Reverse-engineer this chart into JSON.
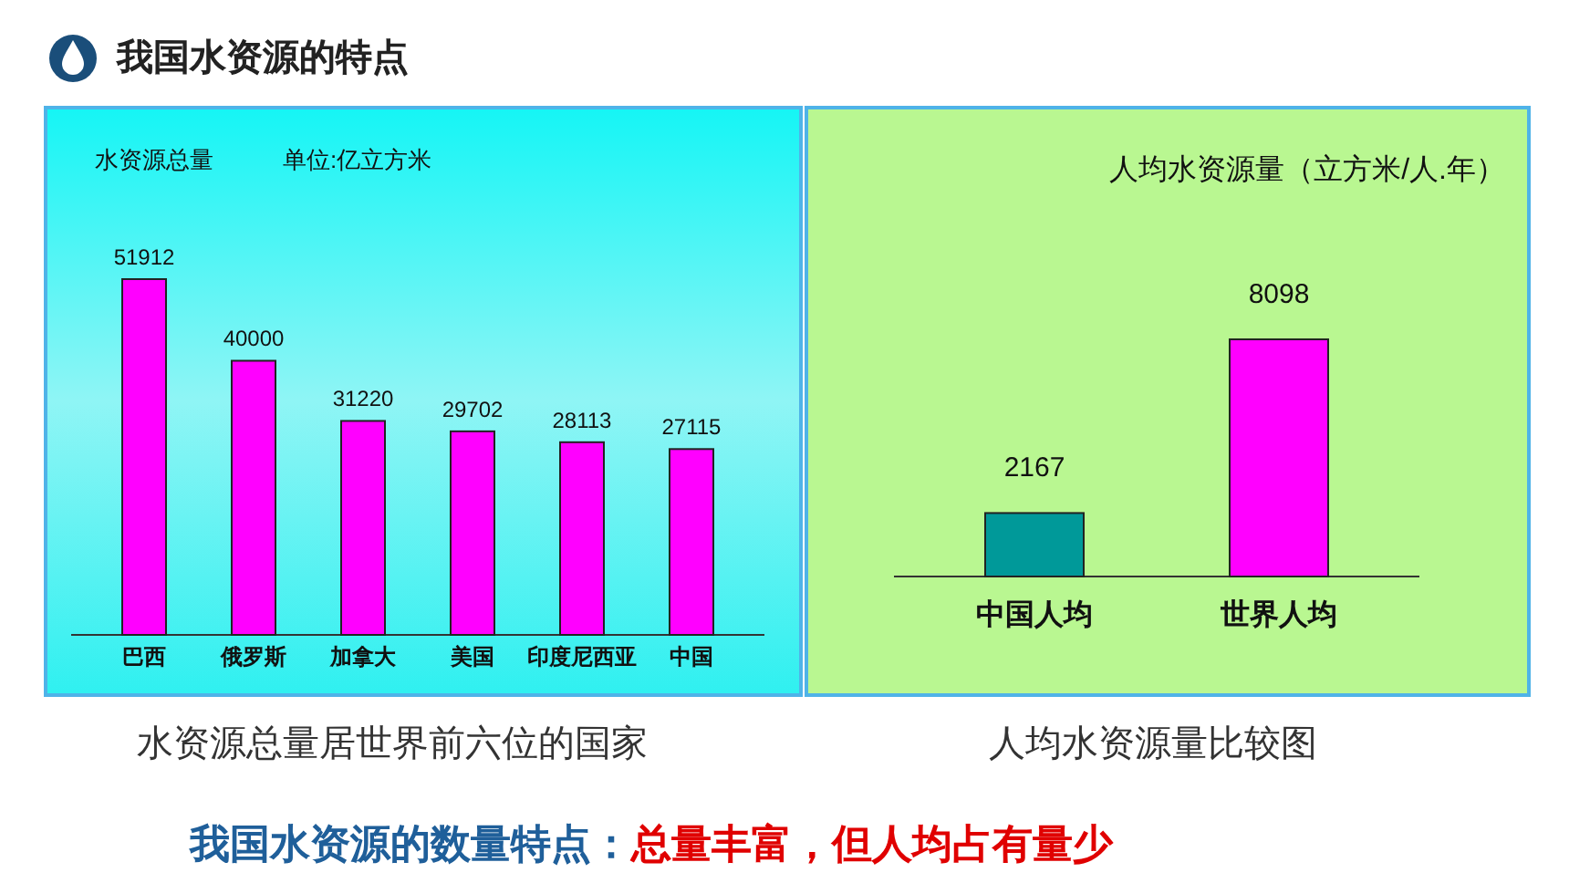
{
  "chart_data": [
    {
      "type": "bar",
      "title": "水资源总量",
      "subtitle": "单位:亿立方米",
      "categories": [
        "巴西",
        "俄罗斯",
        "加拿大",
        "美国",
        "印度尼西亚",
        "中国"
      ],
      "values": [
        51912,
        40000,
        31220,
        29702,
        28113,
        27115
      ],
      "color": "#ff00ff",
      "data_labels": true,
      "annotations": [
        "我国水资源的特点",
        "水资源总量居世界前六位的国家"
      ]
    },
    {
      "type": "bar",
      "title": "人均水资源量（立方米/人.年）",
      "categories": [
        "中国人均",
        "世界人均"
      ],
      "values": [
        2167,
        8098
      ],
      "colors": [
        "#009999",
        "#ff00ff"
      ],
      "data_labels": true,
      "annotations": [
        "人均水资源量比较图",
        "我国水资源的数量特点：",
        "总量丰富，但人均占有量少"
      ]
    }
  ]
}
